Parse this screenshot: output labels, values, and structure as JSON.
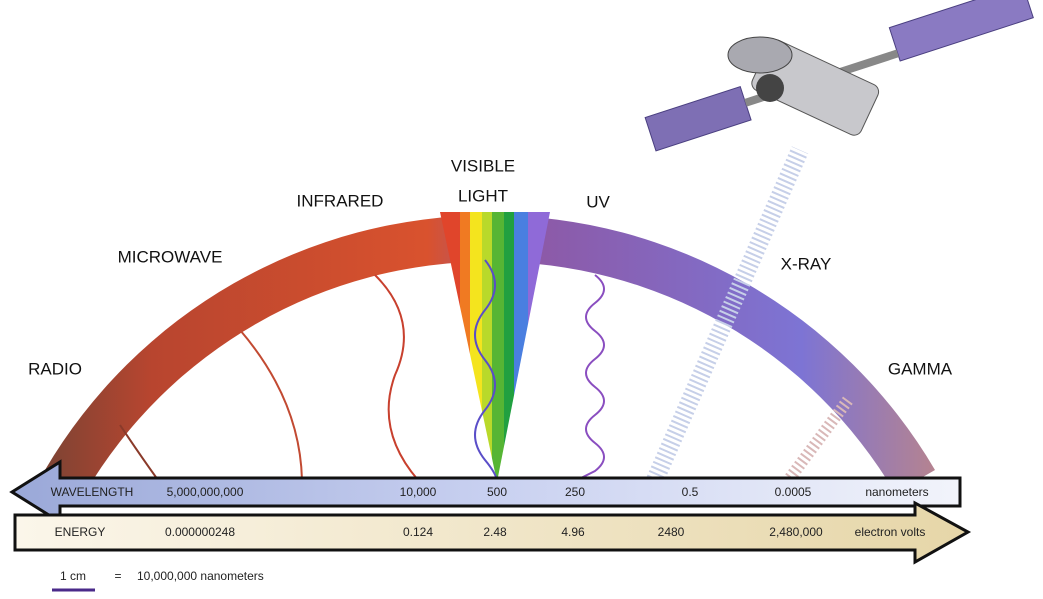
{
  "regions": [
    {
      "lines": [
        "RADIO"
      ]
    },
    {
      "lines": [
        "MICROWAVE"
      ]
    },
    {
      "lines": [
        "INFRARED"
      ]
    },
    {
      "lines": [
        "VISIBLE",
        "LIGHT"
      ]
    },
    {
      "lines": [
        "UV"
      ]
    },
    {
      "lines": [
        "X-RAY"
      ]
    },
    {
      "lines": [
        "GAMMA"
      ]
    }
  ],
  "wavelength": {
    "label": "WAVELENGTH",
    "values": [
      "5,000,000,000",
      "10,000",
      "500",
      "250",
      "0.5",
      "0.0005"
    ],
    "unit": "nanometers"
  },
  "energy": {
    "label": "ENERGY",
    "values": [
      "0.000000248",
      "0.124",
      "2.48",
      "4.96",
      "2480",
      "2,480,000"
    ],
    "unit": "electron volts"
  },
  "scale": {
    "bar": "1 cm",
    "equals": "=",
    "text": "10,000,000 nanometers"
  }
}
